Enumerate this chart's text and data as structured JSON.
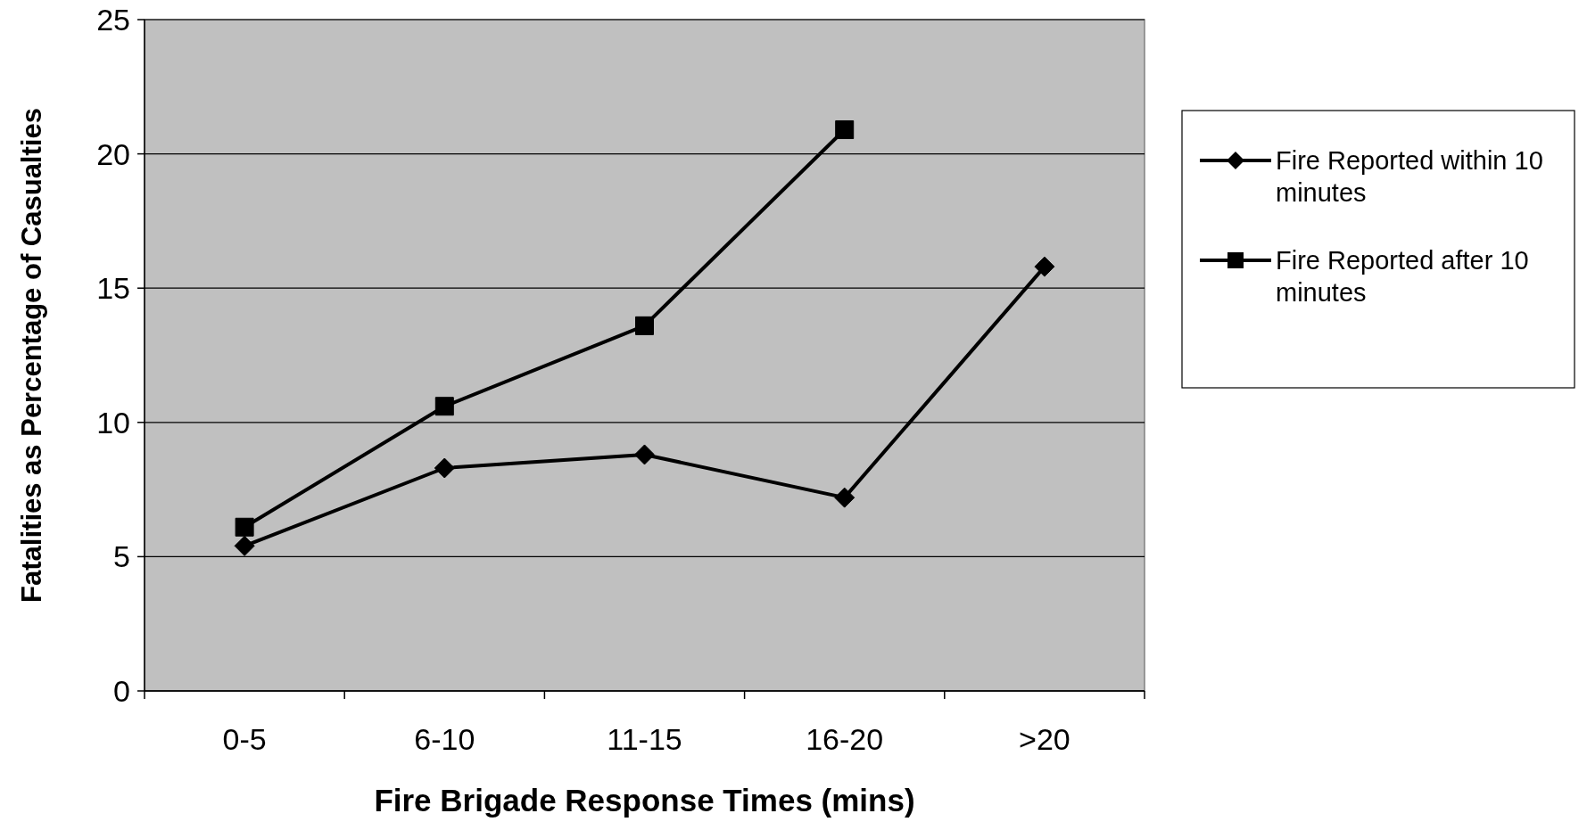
{
  "chart_data": {
    "type": "line",
    "xlabel": "Fire Brigade Response Times (mins)",
    "ylabel": "Fatalities as Percentage of Casualties",
    "categories": [
      "0-5",
      "6-10",
      "11-15",
      "16-20",
      ">20"
    ],
    "series": [
      {
        "name": "Fire Reported within 10 minutes",
        "color": "#000000",
        "marker": "diamond",
        "values": [
          5.4,
          8.3,
          8.8,
          7.2,
          15.8
        ]
      },
      {
        "name": "Fire Reported after 10 minutes",
        "color": "#000000",
        "marker": "square",
        "values": [
          6.1,
          10.6,
          13.6,
          20.9,
          null
        ]
      }
    ],
    "ylim": [
      0,
      25
    ],
    "yticks": [
      0,
      5,
      10,
      15,
      20,
      25
    ],
    "grid": "y",
    "legend": "right",
    "line_style": "solid"
  }
}
